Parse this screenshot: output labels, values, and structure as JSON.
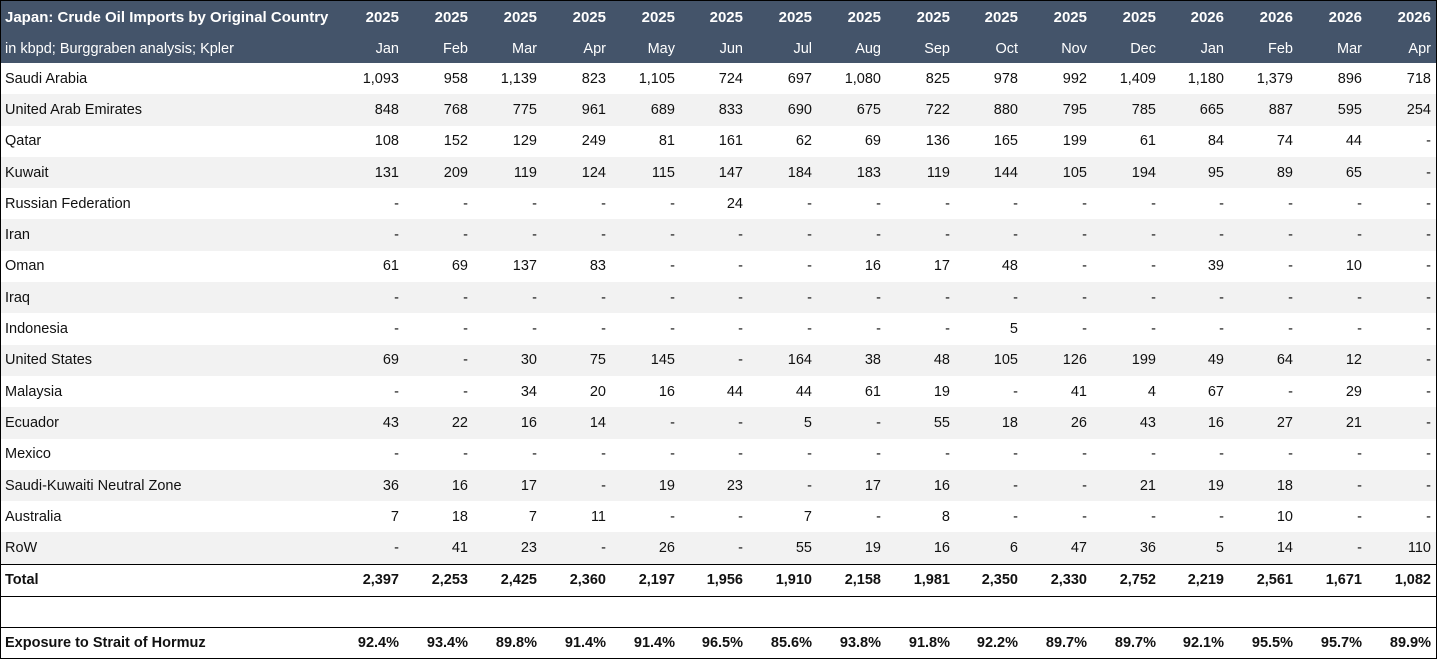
{
  "title": "Japan: Crude Oil Imports by Original Country",
  "subtitle": "in kbpd; Burggraben analysis; Kpler",
  "years": [
    "2025",
    "2025",
    "2025",
    "2025",
    "2025",
    "2025",
    "2025",
    "2025",
    "2025",
    "2025",
    "2025",
    "2025",
    "2026",
    "2026",
    "2026",
    "2026"
  ],
  "months": [
    "Jan",
    "Feb",
    "Mar",
    "Apr",
    "May",
    "Jun",
    "Jul",
    "Aug",
    "Sep",
    "Oct",
    "Nov",
    "Dec",
    "Jan",
    "Feb",
    "Mar",
    "Apr"
  ],
  "rows": [
    {
      "name": "Saudi Arabia",
      "values": [
        "1,093",
        "958",
        "1,139",
        "823",
        "1,105",
        "724",
        "697",
        "1,080",
        "825",
        "978",
        "992",
        "1,409",
        "1,180",
        "1,379",
        "896",
        "718"
      ]
    },
    {
      "name": "United Arab Emirates",
      "values": [
        "848",
        "768",
        "775",
        "961",
        "689",
        "833",
        "690",
        "675",
        "722",
        "880",
        "795",
        "785",
        "665",
        "887",
        "595",
        "254"
      ]
    },
    {
      "name": "Qatar",
      "values": [
        "108",
        "152",
        "129",
        "249",
        "81",
        "161",
        "62",
        "69",
        "136",
        "165",
        "199",
        "61",
        "84",
        "74",
        "44",
        "-"
      ]
    },
    {
      "name": "Kuwait",
      "values": [
        "131",
        "209",
        "119",
        "124",
        "115",
        "147",
        "184",
        "183",
        "119",
        "144",
        "105",
        "194",
        "95",
        "89",
        "65",
        "-"
      ]
    },
    {
      "name": "Russian Federation",
      "values": [
        "-",
        "-",
        "-",
        "-",
        "-",
        "24",
        "-",
        "-",
        "-",
        "-",
        "-",
        "-",
        "-",
        "-",
        "-",
        "-"
      ]
    },
    {
      "name": "Iran",
      "values": [
        "-",
        "-",
        "-",
        "-",
        "-",
        "-",
        "-",
        "-",
        "-",
        "-",
        "-",
        "-",
        "-",
        "-",
        "-",
        "-"
      ]
    },
    {
      "name": "Oman",
      "values": [
        "61",
        "69",
        "137",
        "83",
        "-",
        "-",
        "-",
        "16",
        "17",
        "48",
        "-",
        "-",
        "39",
        "-",
        "10",
        "-"
      ]
    },
    {
      "name": "Iraq",
      "values": [
        "-",
        "-",
        "-",
        "-",
        "-",
        "-",
        "-",
        "-",
        "-",
        "-",
        "-",
        "-",
        "-",
        "-",
        "-",
        "-"
      ]
    },
    {
      "name": "Indonesia",
      "values": [
        "-",
        "-",
        "-",
        "-",
        "-",
        "-",
        "-",
        "-",
        "-",
        "5",
        "-",
        "-",
        "-",
        "-",
        "-",
        "-"
      ]
    },
    {
      "name": "United States",
      "values": [
        "69",
        "-",
        "30",
        "75",
        "145",
        "-",
        "164",
        "38",
        "48",
        "105",
        "126",
        "199",
        "49",
        "64",
        "12",
        "-"
      ]
    },
    {
      "name": "Malaysia",
      "values": [
        "-",
        "-",
        "34",
        "20",
        "16",
        "44",
        "44",
        "61",
        "19",
        "-",
        "41",
        "4",
        "67",
        "-",
        "29",
        "-"
      ]
    },
    {
      "name": "Ecuador",
      "values": [
        "43",
        "22",
        "16",
        "14",
        "-",
        "-",
        "5",
        "-",
        "55",
        "18",
        "26",
        "43",
        "16",
        "27",
        "21",
        "-"
      ]
    },
    {
      "name": "Mexico",
      "values": [
        "-",
        "-",
        "-",
        "-",
        "-",
        "-",
        "-",
        "-",
        "-",
        "-",
        "-",
        "-",
        "-",
        "-",
        "-",
        "-"
      ]
    },
    {
      "name": "Saudi-Kuwaiti Neutral Zone",
      "values": [
        "36",
        "16",
        "17",
        "-",
        "19",
        "23",
        "-",
        "17",
        "16",
        "-",
        "-",
        "21",
        "19",
        "18",
        "-",
        "-"
      ]
    },
    {
      "name": "Australia",
      "values": [
        "7",
        "18",
        "7",
        "11",
        "-",
        "-",
        "7",
        "-",
        "8",
        "-",
        "-",
        "-",
        "-",
        "10",
        "-",
        "-"
      ]
    },
    {
      "name": "RoW",
      "values": [
        "-",
        "41",
        "23",
        "-",
        "26",
        "-",
        "55",
        "19",
        "16",
        "6",
        "47",
        "36",
        "5",
        "14",
        "-",
        "110"
      ]
    }
  ],
  "total": {
    "name": "Total",
    "values": [
      "2,397",
      "2,253",
      "2,425",
      "2,360",
      "2,197",
      "1,956",
      "1,910",
      "2,158",
      "1,981",
      "2,350",
      "2,330",
      "2,752",
      "2,219",
      "2,561",
      "1,671",
      "1,082"
    ]
  },
  "exposure": {
    "name": "Exposure to Strait of Hormuz",
    "values": [
      "92.4%",
      "93.4%",
      "89.8%",
      "91.4%",
      "91.4%",
      "96.5%",
      "85.6%",
      "93.8%",
      "91.8%",
      "92.2%",
      "89.7%",
      "89.7%",
      "92.1%",
      "95.5%",
      "95.7%",
      "89.9%"
    ]
  }
}
